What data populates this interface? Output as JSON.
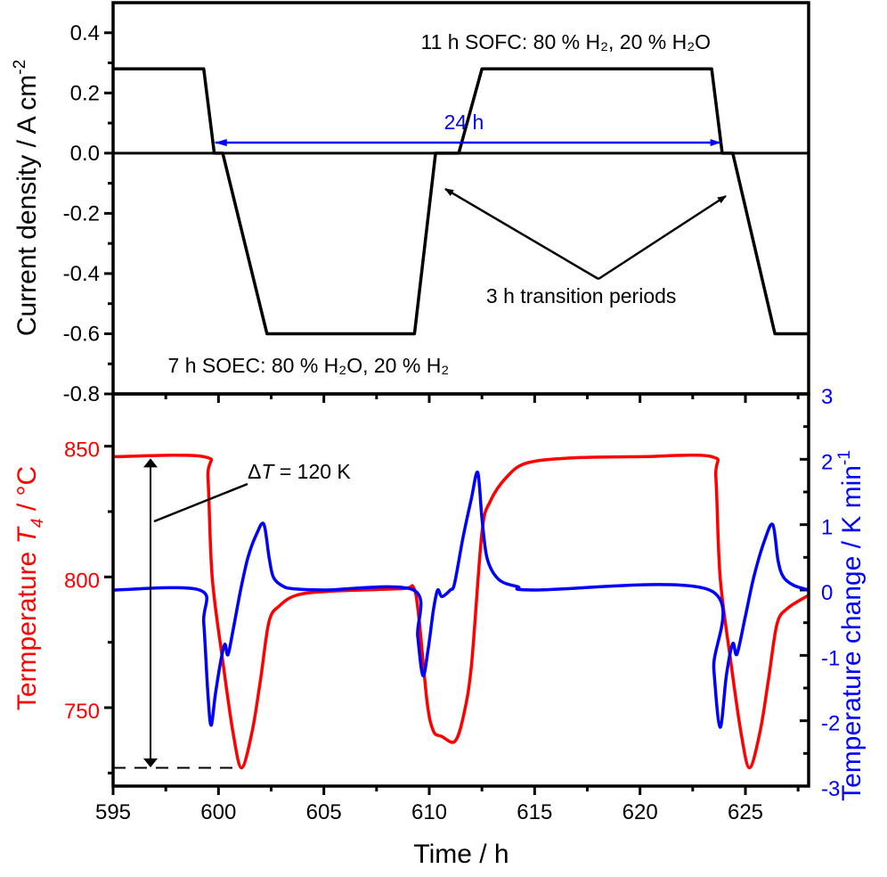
{
  "chart_data": [
    {
      "panel": "top",
      "type": "line",
      "ylabel": {
        "text": "Current density / A cm",
        "sup": "-2"
      },
      "ylim": [
        -0.8,
        0.5
      ],
      "yticks": [
        "0.4",
        "0.2",
        "0.0",
        "-0.2",
        "-0.4",
        "-0.6",
        "-0.8"
      ],
      "series": [
        {
          "color": "#000000",
          "points": [
            [
              595,
              0.28
            ],
            [
              599.3,
              0.28
            ],
            [
              599.8,
              0
            ],
            [
              600.2,
              0
            ],
            [
              602.3,
              -0.6
            ],
            [
              609.3,
              -0.6
            ],
            [
              610.3,
              0
            ],
            [
              611.4,
              0
            ],
            [
              612.5,
              0.28
            ],
            [
              623.4,
              0.28
            ],
            [
              623.9,
              0
            ],
            [
              624.4,
              0
            ],
            [
              626.4,
              -0.6
            ],
            [
              628,
              -0.6
            ]
          ]
        }
      ],
      "annotations": {
        "sofc": "11 h SOFC: 80 % H₂, 20 % H₂O",
        "soec": "7 h SOEC: 80 % H₂O, 20 % H₂",
        "period": "24 h",
        "transition": "3 h transition periods"
      }
    },
    {
      "panel": "bottom",
      "type": "line",
      "xlabel": "Time / h",
      "xlim": [
        595,
        628
      ],
      "xticks": [
        "595",
        "600",
        "605",
        "610",
        "615",
        "620",
        "625"
      ],
      "ylabel_left": {
        "pre": "Termperature ",
        "var": "T",
        "sub": "4",
        "post": " / °C"
      },
      "ylim_left": [
        720,
        870
      ],
      "yticks_left": [
        "850",
        "800",
        "750"
      ],
      "ylabel_right": {
        "text": "Temperature change / K min",
        "sup": "-1"
      },
      "ylim_right": [
        -3,
        3
      ],
      "yticks_right": [
        "3",
        "2",
        "1",
        "0",
        "-1",
        "-2",
        "-3"
      ],
      "series": [
        {
          "axis": "left",
          "color": "#ff0000",
          "points": [
            [
              595,
              846
            ],
            [
              599.3,
              846
            ],
            [
              599.5,
              838
            ],
            [
              599.7,
              800
            ],
            [
              600.2,
              768
            ],
            [
              600.7,
              740
            ],
            [
              601.1,
              727
            ],
            [
              601.6,
              741
            ],
            [
              602.0,
              761
            ],
            [
              602.4,
              783
            ],
            [
              602.9,
              789
            ],
            [
              603.7,
              793
            ],
            [
              605.2,
              794.5
            ],
            [
              608.7,
              795.5
            ],
            [
              609.25,
              796
            ],
            [
              609.5,
              785
            ],
            [
              609.9,
              752
            ],
            [
              610.2,
              741
            ],
            [
              610.6,
              739
            ],
            [
              611.2,
              737
            ],
            [
              611.6,
              746
            ],
            [
              612.0,
              766
            ],
            [
              612.5,
              817
            ],
            [
              612.9,
              829
            ],
            [
              613.65,
              838
            ],
            [
              614.6,
              843.5
            ],
            [
              616.7,
              845.5
            ],
            [
              620,
              846
            ],
            [
              623.4,
              846
            ],
            [
              623.6,
              838
            ],
            [
              623.8,
              800
            ],
            [
              624.3,
              768
            ],
            [
              624.8,
              740
            ],
            [
              625.2,
              727
            ],
            [
              625.7,
              741
            ],
            [
              626.1,
              761
            ],
            [
              626.5,
              782
            ],
            [
              627.0,
              788
            ],
            [
              628,
              793
            ]
          ]
        },
        {
          "axis": "right",
          "color": "#0000ff",
          "points": [
            [
              595,
              0
            ],
            [
              599.1,
              0
            ],
            [
              599.3,
              -0.5
            ],
            [
              599.5,
              -1.6
            ],
            [
              599.65,
              -2.07
            ],
            [
              599.85,
              -1.6
            ],
            [
              600.1,
              -1.1
            ],
            [
              600.3,
              -0.83
            ],
            [
              600.45,
              -0.99
            ],
            [
              600.7,
              -0.6
            ],
            [
              601.05,
              0
            ],
            [
              601.4,
              0.5
            ],
            [
              601.8,
              0.85
            ],
            [
              602.15,
              1.01
            ],
            [
              602.4,
              0.5
            ],
            [
              602.6,
              0.2
            ],
            [
              603.0,
              0.07
            ],
            [
              603.5,
              0.02
            ],
            [
              605,
              0
            ],
            [
              609.25,
              0
            ],
            [
              609.45,
              -0.7
            ],
            [
              609.7,
              -1.31
            ],
            [
              609.95,
              -0.9
            ],
            [
              610.2,
              -0.3
            ],
            [
              610.4,
              0
            ],
            [
              610.6,
              -0.1
            ],
            [
              611.0,
              0.0
            ],
            [
              611.2,
              0.1
            ],
            [
              611.6,
              0.8
            ],
            [
              612.0,
              1.4
            ],
            [
              612.3,
              1.8
            ],
            [
              612.5,
              1.1
            ],
            [
              612.75,
              0.48
            ],
            [
              613.3,
              0.16
            ],
            [
              614.2,
              0.05
            ],
            [
              615,
              0
            ],
            [
              623.3,
              0
            ],
            [
              623.5,
              -1.2
            ],
            [
              623.8,
              -2.1
            ],
            [
              624.1,
              -1.3
            ],
            [
              624.4,
              -0.82
            ],
            [
              624.6,
              -0.98
            ],
            [
              625.0,
              -0.4
            ],
            [
              625.4,
              0.2
            ],
            [
              625.9,
              0.75
            ],
            [
              626.3,
              1.0
            ],
            [
              626.55,
              0.45
            ],
            [
              626.8,
              0.2
            ],
            [
              627.3,
              0.07
            ],
            [
              628,
              0
            ]
          ]
        }
      ],
      "annotations": {
        "delta_symbol": "Δ",
        "delta_var": "T",
        "delta_value": " = 120 K"
      }
    }
  ]
}
